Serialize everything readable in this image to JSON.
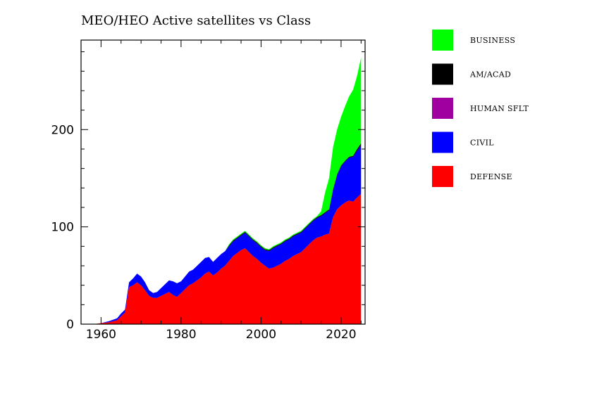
{
  "chart_data": {
    "type": "area",
    "stacked": true,
    "title": "MEO/HEO Active satellites vs Class",
    "xlabel": "",
    "ylabel": "",
    "xlim": [
      1955,
      2026
    ],
    "ylim": [
      0,
      292
    ],
    "x_ticks": [
      {
        "value": 1960,
        "label": "1960"
      },
      {
        "value": 1980,
        "label": "1980"
      },
      {
        "value": 2000,
        "label": "2000"
      },
      {
        "value": 2020,
        "label": "2020"
      }
    ],
    "y_ticks": [
      {
        "value": 0,
        "label": "0"
      },
      {
        "value": 100,
        "label": "100"
      },
      {
        "value": 200,
        "label": "200"
      }
    ],
    "grid": false,
    "legend_position": "right",
    "x": [
      1957,
      1958,
      1960,
      1962,
      1964,
      1965,
      1966,
      1967,
      1968,
      1969,
      1970,
      1971,
      1972,
      1973,
      1974,
      1975,
      1976,
      1977,
      1978,
      1979,
      1980,
      1981,
      1982,
      1983,
      1984,
      1985,
      1986,
      1987,
      1988,
      1989,
      1990,
      1991,
      1992,
      1993,
      1994,
      1995,
      1996,
      1997,
      1998,
      1999,
      2000,
      2001,
      2002,
      2003,
      2004,
      2005,
      2006,
      2007,
      2008,
      2009,
      2010,
      2011,
      2012,
      2013,
      2014,
      2015,
      2016,
      2017,
      2018,
      2019,
      2020,
      2021,
      2022,
      2023,
      2024,
      2025
    ],
    "series": [
      {
        "name": "DEFENSE",
        "color": "#ff0000",
        "values": [
          0,
          0,
          1,
          2,
          4,
          8,
          12,
          38,
          40,
          43,
          40,
          35,
          29,
          27,
          27,
          29,
          31,
          33,
          30,
          28,
          32,
          36,
          40,
          42,
          45,
          48,
          52,
          54,
          50,
          53,
          57,
          60,
          65,
          70,
          73,
          76,
          78,
          74,
          70,
          67,
          63,
          60,
          57,
          58,
          60,
          62,
          65,
          67,
          70,
          72,
          74,
          78,
          82,
          86,
          89,
          90,
          92,
          93,
          110,
          118,
          122,
          125,
          127,
          126,
          130,
          134
        ]
      },
      {
        "name": "CIVIL",
        "color": "#0000ff",
        "values": [
          0,
          0,
          0,
          1,
          2,
          3,
          3,
          5,
          7,
          9,
          9,
          8,
          6,
          5,
          6,
          8,
          10,
          12,
          14,
          14,
          12,
          13,
          14,
          14,
          15,
          16,
          16,
          15,
          14,
          15,
          15,
          15,
          15,
          15,
          15,
          15,
          16,
          16,
          16,
          16,
          16,
          16,
          18,
          20,
          20,
          20,
          20,
          20,
          20,
          20,
          20,
          20,
          20,
          20,
          20,
          21,
          22,
          24,
          28,
          35,
          40,
          42,
          44,
          46,
          48,
          50
        ]
      },
      {
        "name": "HUMAN SFLT",
        "color": "#a000a0",
        "values": [
          0,
          0,
          0,
          0,
          0,
          0,
          0,
          0,
          0,
          0,
          0,
          0,
          0,
          0,
          0,
          0,
          0,
          0,
          0,
          0,
          0,
          0,
          0,
          0,
          0,
          0,
          0,
          0,
          0,
          0,
          0,
          0,
          0,
          0,
          0,
          0,
          0,
          0,
          0,
          0,
          0,
          0,
          0,
          0,
          0,
          0,
          0,
          0,
          0,
          0,
          0,
          0,
          0,
          0,
          0,
          0,
          0,
          0,
          0,
          0,
          0,
          0,
          0,
          0,
          0,
          0
        ]
      },
      {
        "name": "AM/ACAD",
        "color": "#000000",
        "values": [
          0,
          0,
          0,
          0,
          0,
          0,
          0,
          0,
          0,
          0,
          0,
          0,
          0,
          0,
          0,
          0,
          0,
          0,
          0,
          0,
          0,
          0,
          0,
          0,
          0,
          0,
          0,
          0,
          0,
          0,
          0,
          0,
          1,
          1,
          1,
          1,
          1,
          1,
          1,
          1,
          1,
          1,
          1,
          1,
          1,
          1,
          1,
          1,
          1,
          1,
          1,
          1,
          1,
          1,
          1,
          1,
          1,
          1,
          1,
          1,
          1,
          1,
          1,
          1,
          2,
          2
        ]
      },
      {
        "name": "BUSINESS",
        "color": "#00ff00",
        "values": [
          0,
          0,
          0,
          0,
          0,
          0,
          0,
          0,
          0,
          0,
          0,
          0,
          0,
          0,
          0,
          0,
          0,
          0,
          0,
          0,
          0,
          0,
          0,
          0,
          0,
          0,
          0,
          0,
          0,
          0,
          0,
          0,
          1,
          1,
          1,
          1,
          1,
          1,
          1,
          1,
          1,
          1,
          1,
          1,
          1,
          1,
          1,
          1,
          1,
          1,
          1,
          1,
          1,
          1,
          1,
          4,
          20,
          32,
          43,
          46,
          50,
          56,
          62,
          68,
          75,
          88
        ]
      }
    ]
  }
}
